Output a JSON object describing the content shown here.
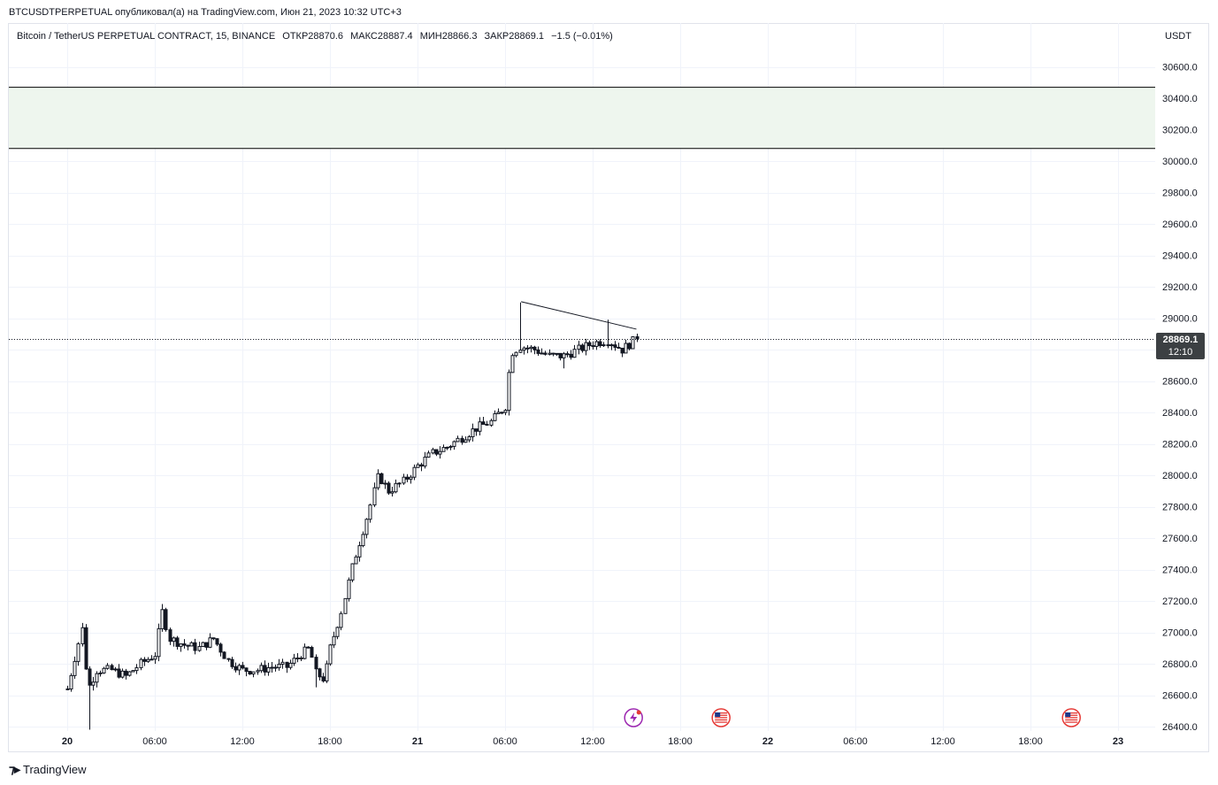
{
  "header": {
    "caption": "BTCUSDTPERPETUAL опубликовал(а) на TradingView.com, Июн 21, 2023 10:32 UTC+3"
  },
  "legend": {
    "symbol": "Bitcoin / TetherUS PERPETUAL CONTRACT, 15, BINANCE",
    "open": "ОТКР28870.6",
    "high": "МАКС28887.4",
    "low": "МИН28866.3",
    "close": "ЗАКР28869.1",
    "change": "−1.5 (−0.01%)"
  },
  "price_axis": {
    "currency": "USDT",
    "last_price": "28869.1",
    "countdown": "12:10"
  },
  "footer": {
    "brand": "TradingView"
  },
  "colors": {
    "candle": "#131722",
    "zone_fill": "#eef6ee",
    "grid": "#f0f3fa",
    "label_bg": "#3c4043",
    "event_icon": "#9c27b0",
    "flag_red": "#e53935"
  },
  "icons": [
    "event-lightning-icon",
    "us-flag-icon",
    "us-flag-icon"
  ],
  "chart_data": {
    "type": "candlestick",
    "title": "",
    "timeframe": "15",
    "ylim": [
      26400,
      30800
    ],
    "yticks": [
      "30600.0",
      "30400.0",
      "30200.0",
      "30000.0",
      "29800.0",
      "29600.0",
      "29400.0",
      "29200.0",
      "29000.0",
      "28800.0",
      "28600.0",
      "28400.0",
      "28200.0",
      "28000.0",
      "27800.0",
      "27600.0",
      "27400.0",
      "27200.0",
      "27000.0",
      "26800.0",
      "26600.0",
      "26400.0"
    ],
    "xticks": [
      {
        "label": "20",
        "hours": 6,
        "bold": true
      },
      {
        "label": "06:00",
        "hours": 12,
        "bold": false
      },
      {
        "label": "12:00",
        "hours": 18,
        "bold": false
      },
      {
        "label": "18:00",
        "hours": 24,
        "bold": false
      },
      {
        "label": "21",
        "hours": 30,
        "bold": true
      },
      {
        "label": "06:00",
        "hours": 36,
        "bold": false
      },
      {
        "label": "12:00",
        "hours": 42,
        "bold": false
      },
      {
        "label": "18:00",
        "hours": 48,
        "bold": false
      },
      {
        "label": "22",
        "hours": 54,
        "bold": true
      },
      {
        "label": "06:00",
        "hours": 60,
        "bold": false
      },
      {
        "label": "12:00",
        "hours": 66,
        "bold": false
      },
      {
        "label": "18:00",
        "hours": 72,
        "bold": false
      },
      {
        "label": "23",
        "hours": 78,
        "bold": true
      }
    ],
    "zone": {
      "top": 30470,
      "bottom": 30080
    },
    "trendline": {
      "start": {
        "hours": 37.1,
        "price": 29105
      },
      "end": {
        "hours": 45.0,
        "price": 28930
      }
    },
    "events": [
      {
        "icon": "event-lightning-icon",
        "hours": 44.8
      },
      {
        "icon": "us-flag-icon",
        "hours": 50.8
      },
      {
        "icon": "us-flag-icon",
        "hours": 74.8
      }
    ],
    "last_price": 28869.1,
    "path_points": [
      [
        6.0,
        26640
      ],
      [
        6.6,
        26880
      ],
      [
        7.0,
        27020
      ],
      [
        7.4,
        26640
      ],
      [
        8.0,
        26760
      ],
      [
        9.0,
        26760
      ],
      [
        10.0,
        26720
      ],
      [
        11.0,
        26800
      ],
      [
        12.0,
        26860
      ],
      [
        12.5,
        27130
      ],
      [
        13.0,
        26960
      ],
      [
        14.0,
        26920
      ],
      [
        15.0,
        26900
      ],
      [
        16.0,
        26960
      ],
      [
        17.0,
        26820
      ],
      [
        18.0,
        26760
      ],
      [
        19.0,
        26760
      ],
      [
        20.0,
        26780
      ],
      [
        21.0,
        26780
      ],
      [
        22.0,
        26860
      ],
      [
        22.6,
        26900
      ],
      [
        23.0,
        26740
      ],
      [
        23.6,
        26700
      ],
      [
        24.0,
        26900
      ],
      [
        24.8,
        27150
      ],
      [
        25.6,
        27450
      ],
      [
        26.6,
        27760
      ],
      [
        27.3,
        28000
      ],
      [
        28.0,
        27900
      ],
      [
        29.0,
        27960
      ],
      [
        30.0,
        28060
      ],
      [
        31.0,
        28140
      ],
      [
        32.0,
        28180
      ],
      [
        33.0,
        28240
      ],
      [
        34.0,
        28300
      ],
      [
        35.0,
        28340
      ],
      [
        36.0,
        28440
      ],
      [
        36.4,
        28780
      ],
      [
        37.0,
        28820
      ],
      [
        38.0,
        28800
      ],
      [
        39.0,
        28760
      ],
      [
        40.0,
        28760
      ],
      [
        41.0,
        28800
      ],
      [
        42.0,
        28840
      ],
      [
        43.0,
        28860
      ],
      [
        44.0,
        28800
      ],
      [
        45.0,
        28869
      ]
    ],
    "anchors": [
      {
        "hours": 7.0,
        "high": 27060
      },
      {
        "hours": 7.4,
        "low": 26380
      },
      {
        "hours": 12.5,
        "high": 27180
      },
      {
        "hours": 23.0,
        "low": 26650
      },
      {
        "hours": 37.0,
        "high": 29100
      },
      {
        "hours": 40.0,
        "low": 28680
      },
      {
        "hours": 43.0,
        "high": 28990
      }
    ]
  }
}
